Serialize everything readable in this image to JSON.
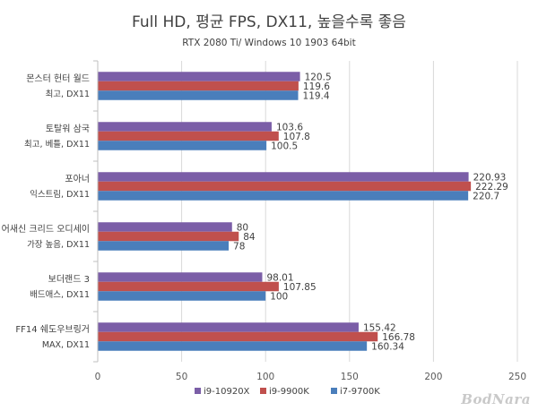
{
  "watermark": "BodNara",
  "chart_data": {
    "type": "bar",
    "orientation": "horizontal",
    "title": "Full HD, 평균 FPS, DX11, 높을수록 좋음",
    "subtitle": "RTX 2080 Ti/ Windows 10 1903 64bit",
    "categories": [
      [
        "몬스터 헌터 월드",
        "최고, DX11"
      ],
      [
        "토탈워 삼국",
        "최고, 베틀, DX11"
      ],
      [
        "포아너",
        "익스트림, DX11"
      ],
      [
        "어새신 크리드 오디세이",
        "가장 높음, DX11"
      ],
      [
        "보더랜드 3",
        "배드애스, DX11"
      ],
      [
        "FF14 쉐도우브링거",
        "MAX, DX11"
      ]
    ],
    "series": [
      {
        "name": "i9-10920X",
        "color": "#7b5ea7",
        "values": [
          120.5,
          103.6,
          220.93,
          80,
          98.01,
          155.42
        ],
        "labels": [
          "120.5",
          "103.6",
          "220.93",
          "80",
          "98.01",
          "155.42"
        ]
      },
      {
        "name": "i9-9900K",
        "color": "#c0504d",
        "values": [
          119.6,
          107.8,
          222.29,
          84,
          107.85,
          166.78
        ],
        "labels": [
          "119.6",
          "107.8",
          "222.29",
          "84",
          "107.85",
          "166.78"
        ]
      },
      {
        "name": "i7-9700K",
        "color": "#4a7ebb",
        "values": [
          119.4,
          100.5,
          220.7,
          78,
          100,
          160.34
        ],
        "labels": [
          "119.4",
          "100.5",
          "220.7",
          "78",
          "100",
          "160.34"
        ]
      }
    ],
    "xlim": [
      0,
      250
    ],
    "xticks": [
      "0",
      "50",
      "100",
      "150",
      "200",
      "250"
    ],
    "grid": true,
    "legend_position": "bottom"
  }
}
